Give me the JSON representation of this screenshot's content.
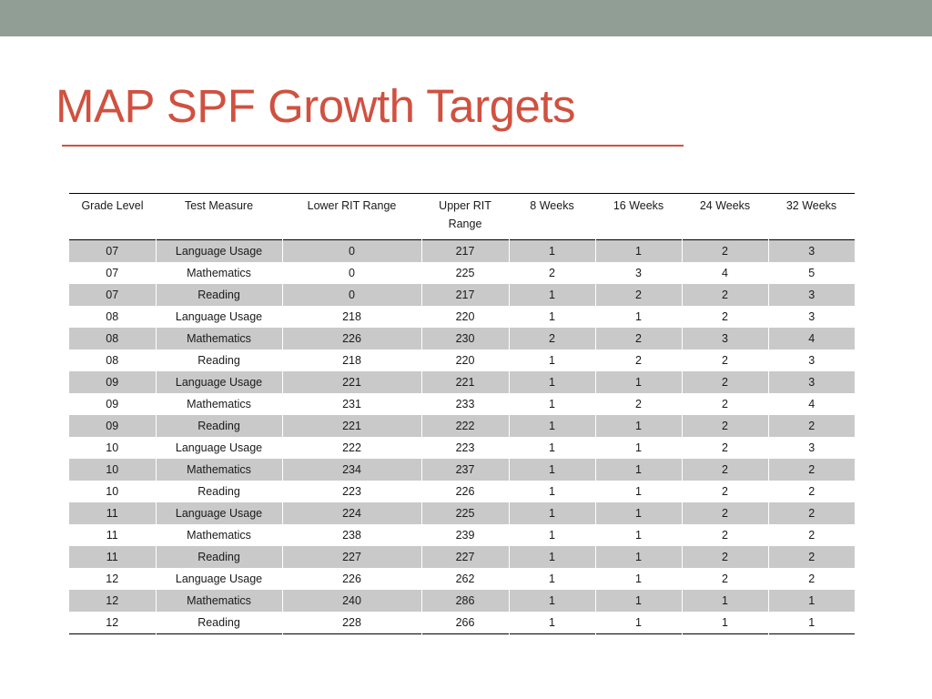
{
  "slide": {
    "title": "MAP SPF Growth Targets"
  },
  "colors": {
    "top_bar": "#909e96",
    "title": "#d05140",
    "rule": "#d05140",
    "band_row": "#c9c9c9",
    "plain_row": "#ffffff"
  },
  "table": {
    "headers": [
      "Grade Level",
      "Test Measure",
      "Lower RIT Range",
      "Upper RIT Range",
      "8 Weeks",
      "16 Weeks",
      "24 Weeks",
      "32 Weeks"
    ],
    "rows": [
      [
        "07",
        "Language Usage",
        "0",
        "217",
        "1",
        "1",
        "2",
        "3"
      ],
      [
        "07",
        "Mathematics",
        "0",
        "225",
        "2",
        "3",
        "4",
        "5"
      ],
      [
        "07",
        "Reading",
        "0",
        "217",
        "1",
        "2",
        "2",
        "3"
      ],
      [
        "08",
        "Language Usage",
        "218",
        "220",
        "1",
        "1",
        "2",
        "3"
      ],
      [
        "08",
        "Mathematics",
        "226",
        "230",
        "2",
        "2",
        "3",
        "4"
      ],
      [
        "08",
        "Reading",
        "218",
        "220",
        "1",
        "2",
        "2",
        "3"
      ],
      [
        "09",
        "Language Usage",
        "221",
        "221",
        "1",
        "1",
        "2",
        "3"
      ],
      [
        "09",
        "Mathematics",
        "231",
        "233",
        "1",
        "2",
        "2",
        "4"
      ],
      [
        "09",
        "Reading",
        "221",
        "222",
        "1",
        "1",
        "2",
        "2"
      ],
      [
        "10",
        "Language Usage",
        "222",
        "223",
        "1",
        "1",
        "2",
        "3"
      ],
      [
        "10",
        "Mathematics",
        "234",
        "237",
        "1",
        "1",
        "2",
        "2"
      ],
      [
        "10",
        "Reading",
        "223",
        "226",
        "1",
        "1",
        "2",
        "2"
      ],
      [
        "11",
        "Language Usage",
        "224",
        "225",
        "1",
        "1",
        "2",
        "2"
      ],
      [
        "11",
        "Mathematics",
        "238",
        "239",
        "1",
        "1",
        "2",
        "2"
      ],
      [
        "11",
        "Reading",
        "227",
        "227",
        "1",
        "1",
        "2",
        "2"
      ],
      [
        "12",
        "Language Usage",
        "226",
        "262",
        "1",
        "1",
        "2",
        "2"
      ],
      [
        "12",
        "Mathematics",
        "240",
        "286",
        "1",
        "1",
        "1",
        "1"
      ],
      [
        "12",
        "Reading",
        "228",
        "266",
        "1",
        "1",
        "1",
        "1"
      ]
    ]
  }
}
